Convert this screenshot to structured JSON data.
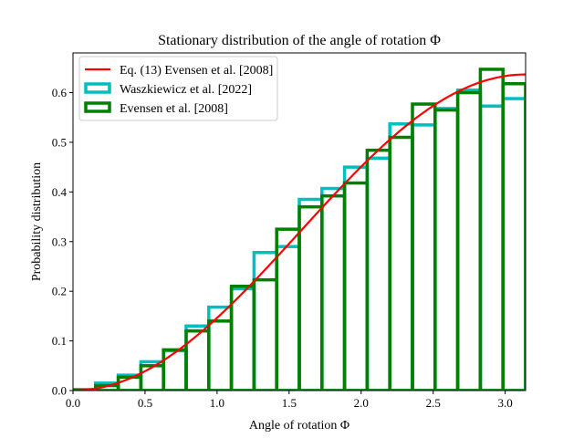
{
  "chart_data": {
    "type": "histogram_line",
    "title": "Stationary distribution of the angle of rotation Φ",
    "xlabel": "Angle of rotation Φ",
    "ylabel": "Probability distribution",
    "xlim": [
      0.0,
      3.14159
    ],
    "ylim": [
      0.0,
      0.68
    ],
    "xticks": [
      0.0,
      0.5,
      1.0,
      1.5,
      2.0,
      2.5,
      3.0
    ],
    "xtick_labels": [
      "0.0",
      "0.5",
      "1.0",
      "1.5",
      "2.0",
      "2.5",
      "3.0"
    ],
    "yticks": [
      0.0,
      0.1,
      0.2,
      0.3,
      0.4,
      0.5,
      0.6
    ],
    "ytick_labels": [
      "0.0",
      "0.1",
      "0.2",
      "0.3",
      "0.4",
      "0.5",
      "0.6"
    ],
    "grid": false,
    "legend_position": "upper-left",
    "bin_edges": [
      0.0,
      0.15708,
      0.31416,
      0.47124,
      0.62832,
      0.7854,
      0.94248,
      1.09956,
      1.25664,
      1.41372,
      1.5708,
      1.72788,
      1.88496,
      2.04204,
      2.19911,
      2.35619,
      2.51327,
      2.67035,
      2.82743,
      2.98451,
      3.14159
    ],
    "series": [
      {
        "name": "Eq. (13) Evensen et al. [2008]",
        "type": "line",
        "color": "#ff0000",
        "formula": "(1 - cos Φ) / π"
      },
      {
        "name": "Waszkiewicz et al. [2022]",
        "type": "step_histogram",
        "color": "#00bfbf",
        "values": [
          0.002,
          0.015,
          0.031,
          0.058,
          0.08,
          0.13,
          0.168,
          0.205,
          0.278,
          0.29,
          0.385,
          0.407,
          0.45,
          0.468,
          0.537,
          0.535,
          0.568,
          0.605,
          0.573,
          0.588
        ]
      },
      {
        "name": "Evensen et al. [2008]",
        "type": "step_histogram",
        "color": "#008000",
        "values": [
          0.001,
          0.01,
          0.027,
          0.05,
          0.082,
          0.12,
          0.14,
          0.21,
          0.223,
          0.325,
          0.37,
          0.392,
          0.418,
          0.484,
          0.51,
          0.577,
          0.565,
          0.6,
          0.647,
          0.618
        ]
      }
    ]
  }
}
